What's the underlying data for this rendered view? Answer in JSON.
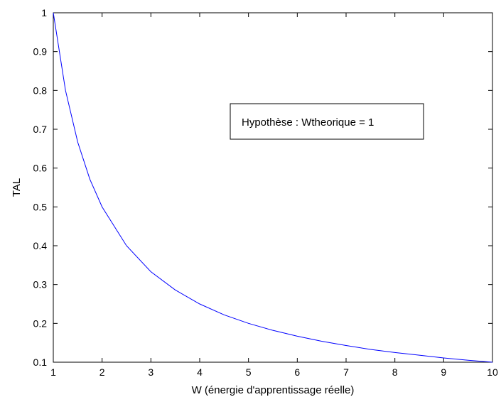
{
  "chart_data": {
    "type": "line",
    "title": "",
    "xlabel": "W (énergie d'apprentissage réelle)",
    "ylabel": "TAL",
    "xlim": [
      1,
      10
    ],
    "ylim": [
      0.1,
      1
    ],
    "xticks": [
      "1",
      "2",
      "3",
      "4",
      "5",
      "6",
      "7",
      "8",
      "9",
      "10"
    ],
    "yticks": [
      "0.1",
      "0.2",
      "0.3",
      "0.4",
      "0.5",
      "0.6",
      "0.7",
      "0.8",
      "0.9",
      "1"
    ],
    "grid": false,
    "legend": "none",
    "annotation": "Hypothèse : Wtheorique = 1",
    "line_color": "#0000ff",
    "series": [
      {
        "x": [
          1,
          1.25,
          1.5,
          1.75,
          2,
          2.5,
          3,
          3.5,
          4,
          4.5,
          5,
          5.5,
          6,
          6.5,
          7,
          7.5,
          8,
          8.5,
          9,
          9.5,
          10
        ],
        "y": [
          1,
          0.8,
          0.667,
          0.571,
          0.5,
          0.4,
          0.333,
          0.286,
          0.25,
          0.222,
          0.2,
          0.182,
          0.167,
          0.154,
          0.143,
          0.133,
          0.125,
          0.118,
          0.111,
          0.105,
          0.1
        ]
      }
    ]
  }
}
